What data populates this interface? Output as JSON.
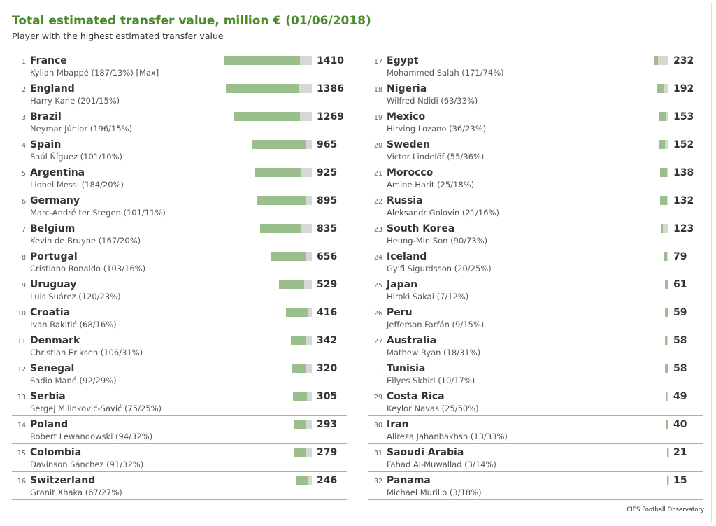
{
  "title": "Total estimated transfer value, million € (01/06/2018)",
  "subtitle": "Player with the highest estimated transfer value",
  "source": "CIES Football Observatory",
  "colors": {
    "title": "#4a8a2a",
    "bar_player_share": "#9bbf8c",
    "bar_rest": "#d5d8d5",
    "divider": "#94c08a"
  },
  "chart_data": {
    "type": "bar",
    "orientation": "horizontal",
    "title": "Total estimated transfer value, million € (01/06/2018)",
    "subtitle": "Player with the highest estimated transfer value",
    "xlim": [
      0,
      1410
    ],
    "grid": false,
    "columns": 2,
    "rows": [
      {
        "rank": "1",
        "country": "France",
        "player": "Kylian Mbappé (187/13%) [Max]",
        "value": 1410,
        "player_value": 187
      },
      {
        "rank": "2",
        "country": "England",
        "player": "Harry Kane (201/15%)",
        "value": 1386,
        "player_value": 201
      },
      {
        "rank": "3",
        "country": "Brazil",
        "player": "Neymar Júnior (196/15%)",
        "value": 1269,
        "player_value": 196
      },
      {
        "rank": "4",
        "country": "Spain",
        "player": "Saúl Ñíguez (101/10%)",
        "value": 965,
        "player_value": 101
      },
      {
        "rank": "5",
        "country": "Argentina",
        "player": "Lionel Messi (184/20%)",
        "value": 925,
        "player_value": 184
      },
      {
        "rank": "6",
        "country": "Germany",
        "player": "Marc-André ter Stegen (101/11%)",
        "value": 895,
        "player_value": 101
      },
      {
        "rank": "7",
        "country": "Belgium",
        "player": "Kevin de Bruyne (167/20%)",
        "value": 835,
        "player_value": 167
      },
      {
        "rank": "8",
        "country": "Portugal",
        "player": "Cristiano Ronaldo (103/16%)",
        "value": 656,
        "player_value": 103
      },
      {
        "rank": "9",
        "country": "Uruguay",
        "player": "Luis Suárez (120/23%)",
        "value": 529,
        "player_value": 120
      },
      {
        "rank": "10",
        "country": "Croatia",
        "player": "Ivan Rakitić (68/16%)",
        "value": 416,
        "player_value": 68
      },
      {
        "rank": "11",
        "country": "Denmark",
        "player": "Christian Eriksen (106/31%)",
        "value": 342,
        "player_value": 106
      },
      {
        "rank": "12",
        "country": "Senegal",
        "player": "Sadio Mané (92/29%)",
        "value": 320,
        "player_value": 92
      },
      {
        "rank": "13",
        "country": "Serbia",
        "player": "Sergej Milinković-Savić (75/25%)",
        "value": 305,
        "player_value": 75
      },
      {
        "rank": "14",
        "country": "Poland",
        "player": "Robert Lewandowski (94/32%)",
        "value": 293,
        "player_value": 94
      },
      {
        "rank": "15",
        "country": "Colombia",
        "player": "Davinson Sánchez (91/32%)",
        "value": 279,
        "player_value": 91
      },
      {
        "rank": "16",
        "country": "Switzerland",
        "player": "Granit Xhaka (67/27%)",
        "value": 246,
        "player_value": 67
      },
      {
        "rank": "17",
        "country": "Egypt",
        "player": "Mohammed Salah (171/74%)",
        "value": 232,
        "player_value": 171
      },
      {
        "rank": "18",
        "country": "Nigeria",
        "player": "Wilfred Ndidi (63/33%)",
        "value": 192,
        "player_value": 63
      },
      {
        "rank": "19",
        "country": "Mexico",
        "player": "Hirving Lozano (36/23%)",
        "value": 153,
        "player_value": 36
      },
      {
        "rank": "20",
        "country": "Sweden",
        "player": "Victor Lindelöf (55/36%)",
        "value": 152,
        "player_value": 55
      },
      {
        "rank": "21",
        "country": "Morocco",
        "player": "Amine Harit (25/18%)",
        "value": 138,
        "player_value": 25
      },
      {
        "rank": "22",
        "country": "Russia",
        "player": "Aleksandr Golovin (21/16%)",
        "value": 132,
        "player_value": 21
      },
      {
        "rank": "23",
        "country": "South Korea",
        "player": "Heung-Min Son (90/73%)",
        "value": 123,
        "player_value": 90
      },
      {
        "rank": "24",
        "country": "Iceland",
        "player": "Gylfi Sigurdsson (20/25%)",
        "value": 79,
        "player_value": 20
      },
      {
        "rank": "25",
        "country": "Japan",
        "player": "Hiroki Sakai (7/12%)",
        "value": 61,
        "player_value": 7
      },
      {
        "rank": "26",
        "country": "Peru",
        "player": "Jefferson Farfán (9/15%)",
        "value": 59,
        "player_value": 9
      },
      {
        "rank": "27",
        "country": "Australia",
        "player": "Mathew Ryan (18/31%)",
        "value": 58,
        "player_value": 18
      },
      {
        "rank": ".",
        "country": "Tunisia",
        "player": "Ellyes Skhiri (10/17%)",
        "value": 58,
        "player_value": 10
      },
      {
        "rank": "29",
        "country": "Costa Rica",
        "player": "Keylor Navas (25/50%)",
        "value": 49,
        "player_value": 25
      },
      {
        "rank": "30",
        "country": "Iran",
        "player": "Alireza Jahanbakhsh (13/33%)",
        "value": 40,
        "player_value": 13
      },
      {
        "rank": "31",
        "country": "Saoudi Arabia",
        "player": "Fahad Al-Muwallad (3/14%)",
        "value": 21,
        "player_value": 3
      },
      {
        "rank": "32",
        "country": "Panama",
        "player": "Michael Murillo (3/18%)",
        "value": 15,
        "player_value": 3
      }
    ]
  }
}
